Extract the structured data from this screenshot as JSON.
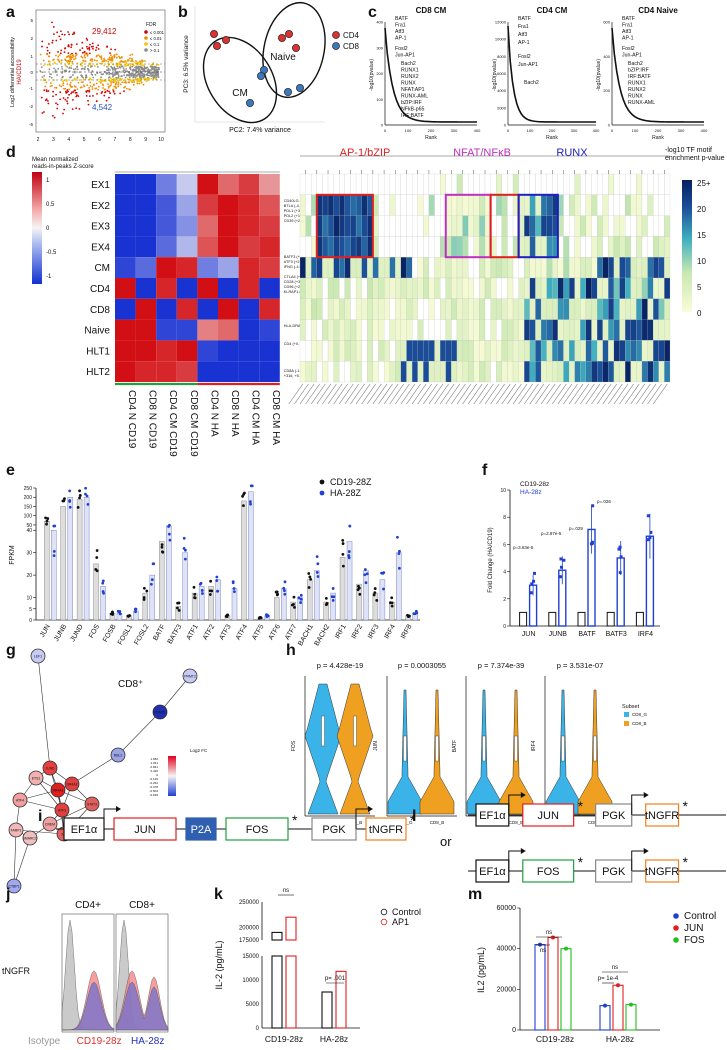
{
  "panels": {
    "a": {
      "label": "a",
      "ylabel": "Log2 differential accessibility",
      "ylabel2": "HA/CD19",
      "up_count": "29,412",
      "down_count": "4,542",
      "legend_title": "FDR",
      "legend_items": [
        "≤ 0.001",
        "≤ 0.01",
        "≤ 0.1",
        "> 0.1"
      ],
      "legend_colors": [
        "#d40000",
        "#f08c00",
        "#f5c400",
        "#8c8c8c"
      ],
      "xticks": [
        "2",
        "3",
        "4",
        "5",
        "6",
        "7",
        "8",
        "9",
        "10"
      ],
      "yticks": [
        "5",
        "2",
        "1",
        "0",
        "-1",
        "-2",
        "-5"
      ]
    },
    "b": {
      "label": "b",
      "xlabel": "PC2: 7.4% variance",
      "ylabel": "PC3: 6.5% variance",
      "group_naive": "Naive",
      "group_cm": "CM",
      "legend": [
        {
          "name": "CD4",
          "color": "#e03030"
        },
        {
          "name": "CD8",
          "color": "#3a78c0"
        }
      ]
    },
    "c": {
      "label": "c",
      "subplots": [
        {
          "title": "CD8 CM",
          "labels": [
            "BATF",
            "Fra1",
            "Atf3",
            "AP-1",
            "Fosl2",
            "Jun-AP1",
            "Bach2",
            "RUNX1",
            "RUNX2",
            "RUNX",
            "NFAT:AP1",
            "RUNX-AML",
            "bZIP:IRF",
            "NFkB-p65",
            "IRF:BATF"
          ],
          "ymax": "400",
          "yticks": [
            "0",
            "100",
            "200",
            "300",
            "400"
          ]
        },
        {
          "title": "CD4 CM",
          "labels": [
            "BATF",
            "Fra1",
            "Atf3",
            "AP-1",
            "Fosl2",
            "Jun-AP1",
            "Bach2"
          ],
          "yticks": [
            "0",
            "2000",
            "4000",
            "6000",
            "8000",
            "10000",
            "12000"
          ]
        },
        {
          "title": "CD4 Naive",
          "labels": [
            "BATF",
            "Fra1",
            "Atf3",
            "AP-1",
            "Fosl2",
            "Jun-AP1",
            "Bach2",
            "bZIP:IRF",
            "IRF:BATF",
            "RUNX1",
            "RUNX2",
            "RUNX",
            "RUNX-AML"
          ],
          "yticks": [
            "0",
            "200",
            "400",
            "600"
          ]
        }
      ],
      "ylabel": "-log10(pvalue)",
      "xlabel": "Rank",
      "xticks": [
        "0",
        "100",
        "200",
        "300",
        "400"
      ]
    },
    "d": {
      "label": "d",
      "legend_title": "Mean normalized\nreads-in-peaks Z-score",
      "legend_ticks": [
        "1",
        "0.5",
        "0",
        "-0.5",
        "-1"
      ],
      "rows": [
        "EX1",
        "EX2",
        "EX3",
        "EX4",
        "CM",
        "CD4",
        "CD8",
        "Naive",
        "HLT1",
        "HLT2"
      ],
      "cols": [
        "CD4 N CD19",
        "CD8 N CD19",
        "CD4 CM CD19",
        "CD8 CM CD19",
        "CD4 N HA",
        "CD8 N HA",
        "CD4 CM HA",
        "CD8 CM HA"
      ],
      "annotations": [
        "CD40LG (+5.0 kb)\nBTLA (-4.2 kb)\nPDL1 (+37.6 kb)\nPDL2 (+16.3 kb)\nCD39 (+20.3 kb)",
        "BATF3 (+55.5 kb)\nATF3 (+21.2 kb)\nIFNG (-4.0 kb)",
        "CTLA4 (+23.8 kb)\nCD28 (+31.1 kb)\nCD96 (+26.6 kb)\nKLRAP1 (+56.8 kb)",
        "HLA-DRA (-15)",
        "CD4 (+0, +1.5 kb)",
        "CD8A (-1.3 kb, +342,\n+316, +5.5 kb, +8.1 kb)"
      ],
      "groups": [
        {
          "name": "AP-1/bZIP",
          "color": "#e02020"
        },
        {
          "name": "NFAT/NFκB",
          "color": "#c030c0"
        },
        {
          "name": "RUNX",
          "color": "#2020c0"
        }
      ],
      "cbar_title": "-log10 TF motif\nenrichment p-value",
      "cbar_ticks": [
        "25+",
        "20",
        "15",
        "10",
        "5",
        "0"
      ]
    },
    "e": {
      "label": "e",
      "ylabel": "FPKM",
      "legend": [
        {
          "name": "CD19-28Z",
          "color": "#111"
        },
        {
          "name": "HA-28Z",
          "color": "#2040d0"
        }
      ],
      "genes": [
        "JUN",
        "JUNB",
        "JUND",
        "FOS",
        "FOSB",
        "FOSL1",
        "FOSL2",
        "BATF",
        "BATF3",
        "ATF1",
        "ATF2",
        "ATF3",
        "ATF4",
        "ATF5",
        "ATF6",
        "ATF7",
        "BACH1",
        "BACH2",
        "IRF1",
        "IRF2",
        "IRF3",
        "IRF4",
        "IRF8"
      ],
      "yticks": [
        "250",
        "200",
        "150",
        "100",
        "50",
        "40",
        "30",
        "20",
        "10",
        "5",
        "0"
      ],
      "cd19": [
        70,
        150,
        190,
        25,
        3,
        2,
        12,
        35,
        6,
        12,
        15,
        2,
        180,
        1,
        10,
        8,
        18,
        8,
        28,
        16,
        12,
        8,
        2
      ],
      "ha": [
        40,
        200,
        200,
        15,
        3,
        4,
        20,
        45,
        30,
        15,
        18,
        14,
        230,
        2,
        14,
        10,
        22,
        12,
        35,
        22,
        18,
        30,
        3
      ]
    },
    "f": {
      "label": "f",
      "ylabel": "Fold Change (HA/CD19)",
      "legend": [
        {
          "name": "CD19-28z",
          "color": "#111"
        },
        {
          "name": "HA-28z",
          "color": "#2040d0"
        }
      ],
      "genes": [
        "JUN",
        "JUNB",
        "BATF",
        "BATF3",
        "IRF4"
      ],
      "cd19": [
        1,
        1,
        1,
        1,
        1
      ],
      "ha": [
        3.0,
        4.1,
        7.1,
        5.0,
        6.6
      ],
      "pvals": [
        "p=3.63e-5",
        "p=2.87e-5",
        "p=.029",
        "p=.026"
      ],
      "yticks": [
        "0",
        "2",
        "4",
        "6",
        "8",
        "10"
      ]
    },
    "g": {
      "label": "g",
      "title": "CD8⁺",
      "legend_title": "Log2 FC",
      "legend_ticks": [
        "1.682",
        "1.261",
        "0.841",
        "0.420",
        "0",
        "-0.126",
        "-0.252",
        "-0.378",
        "-0.504",
        "-0.630"
      ],
      "nodes": [
        "LEF1",
        "PRMT2",
        "RUNX1",
        "RBL2",
        "JUND",
        "ETS1",
        "NR4A1",
        "NR4A2",
        "ATF4",
        "ATF3",
        "STAT3",
        "CREM",
        "JUN",
        "FARP1",
        "SMARCC",
        "CTBP1"
      ]
    },
    "h": {
      "label": "h",
      "genes": [
        "FOS",
        "JUN",
        "BATF",
        "IRF4"
      ],
      "pvals": [
        "p = 4.428e-19",
        "p = 0.0003055",
        "p = 7.374e-39",
        "p = 3.531e-07"
      ],
      "xcats": [
        "CD8_G",
        "CD8_B"
      ],
      "legend_title": "Subset",
      "legend": [
        {
          "name": "CD8_G",
          "color": "#3ab4e8"
        },
        {
          "name": "CD8_B",
          "color": "#f0a020"
        }
      ]
    },
    "i": {
      "label": "i",
      "parts": [
        "EF1α",
        "JUN",
        "P2A",
        "FOS",
        "PGK",
        "tNGFR"
      ]
    },
    "l": {
      "label": "l",
      "or_label": "or",
      "rows": [
        [
          "EF1α",
          "JUN",
          "PGK",
          "tNGFR"
        ],
        [
          "EF1α",
          "FOS",
          "PGK",
          "tNGFR"
        ]
      ]
    },
    "j": {
      "label": "j",
      "headers": [
        "CD4+",
        "CD8+"
      ],
      "ylabel": "tNGFR",
      "legend": [
        {
          "name": "Isotype",
          "color": "#999"
        },
        {
          "name": "CD19-28z",
          "color": "#e03030"
        },
        {
          "name": "HA-28z",
          "color": "#2030c0"
        }
      ]
    },
    "k": {
      "label": "k",
      "ylabel": "IL-2 (pg/mL)",
      "groups": [
        "CD19-28z",
        "HA-28z"
      ],
      "legend": [
        {
          "name": "Control",
          "color": "#111"
        },
        {
          "name": "AP1",
          "color": "#e02020"
        }
      ],
      "values": {
        "control": [
          190000,
          7500
        ],
        "ap1": [
          220000,
          11800
        ]
      },
      "ns": "ns",
      "pval": "p= .001",
      "yticks_top": [
        "250000",
        "200000",
        "175000"
      ],
      "yticks_bottom": [
        "15000",
        "10000",
        "5000",
        "0"
      ]
    },
    "m": {
      "label": "m",
      "ylabel": "IL2 (pg/mL)",
      "groups": [
        "CD19-28z",
        "HA-28z"
      ],
      "legend": [
        {
          "name": "Control",
          "color": "#2040d0"
        },
        {
          "name": "JUN",
          "color": "#e02020"
        },
        {
          "name": "FOS",
          "color": "#20c020"
        }
      ],
      "values": {
        "control": [
          42000,
          12000
        ],
        "jun": [
          45500,
          22000
        ],
        "fos": [
          40000,
          12500
        ]
      },
      "ns": "ns",
      "pval": "p= 1e-4",
      "yticks": [
        "60000",
        "40000",
        "20000",
        "0"
      ]
    }
  },
  "chart_data": [
    {
      "type": "bar",
      "title": "e",
      "categories": [
        "JUN",
        "JUNB",
        "JUND",
        "FOS",
        "FOSB",
        "FOSL1",
        "FOSL2",
        "BATF",
        "BATF3",
        "ATF1",
        "ATF2",
        "ATF3",
        "ATF4",
        "ATF5",
        "ATF6",
        "ATF7",
        "BACH1",
        "BACH2",
        "IRF1",
        "IRF2",
        "IRF3",
        "IRF4",
        "IRF8"
      ],
      "series": [
        {
          "name": "CD19-28Z",
          "values": [
            70,
            150,
            190,
            25,
            3,
            2,
            12,
            35,
            6,
            12,
            15,
            2,
            180,
            1,
            10,
            8,
            18,
            8,
            28,
            16,
            12,
            8,
            2
          ]
        },
        {
          "name": "HA-28Z",
          "values": [
            40,
            200,
            200,
            15,
            3,
            4,
            20,
            45,
            30,
            15,
            18,
            14,
            230,
            2,
            14,
            10,
            22,
            12,
            35,
            22,
            18,
            30,
            3
          ]
        }
      ],
      "ylabel": "FPKM"
    },
    {
      "type": "bar",
      "title": "f",
      "categories": [
        "JUN",
        "JUNB",
        "BATF",
        "BATF3",
        "IRF4"
      ],
      "series": [
        {
          "name": "CD19-28z",
          "values": [
            1,
            1,
            1,
            1,
            1
          ]
        },
        {
          "name": "HA-28z",
          "values": [
            3.0,
            4.1,
            7.1,
            5.0,
            6.6
          ]
        }
      ],
      "ylabel": "Fold Change (HA/CD19)",
      "ylim": [
        0,
        10
      ]
    },
    {
      "type": "bar",
      "title": "k",
      "categories": [
        "CD19-28z",
        "HA-28z"
      ],
      "series": [
        {
          "name": "Control",
          "values": [
            190000,
            7500
          ]
        },
        {
          "name": "AP1",
          "values": [
            220000,
            11800
          ]
        }
      ],
      "ylabel": "IL-2 (pg/mL)"
    },
    {
      "type": "bar",
      "title": "m",
      "categories": [
        "CD19-28z",
        "HA-28z"
      ],
      "series": [
        {
          "name": "Control",
          "values": [
            42000,
            12000
          ]
        },
        {
          "name": "JUN",
          "values": [
            45500,
            22000
          ]
        },
        {
          "name": "FOS",
          "values": [
            40000,
            12500
          ]
        }
      ],
      "ylabel": "IL2 (pg/mL)",
      "ylim": [
        0,
        60000
      ]
    }
  ]
}
